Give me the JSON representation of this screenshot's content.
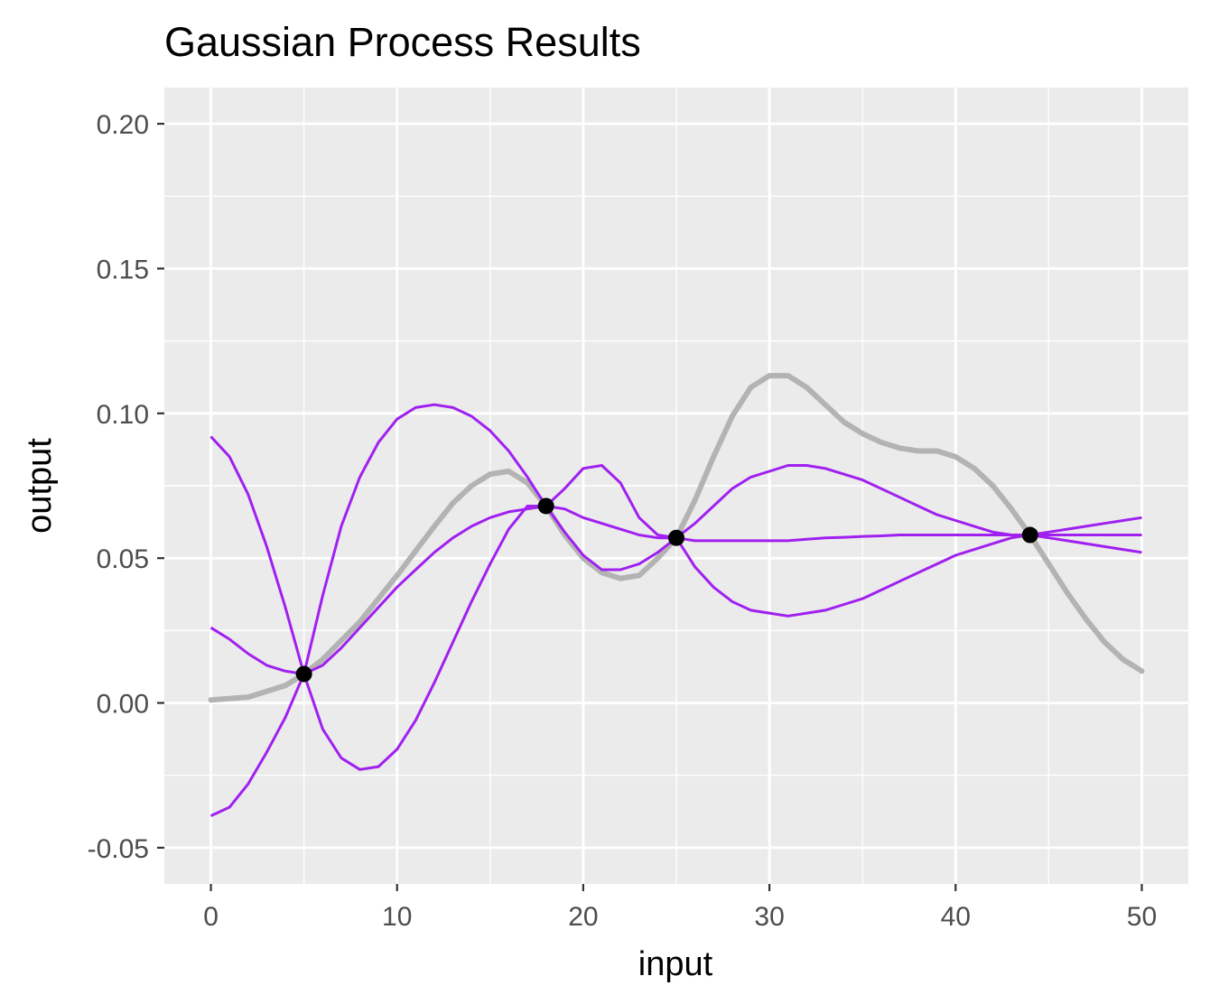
{
  "chart_data": {
    "type": "line",
    "title": "Gaussian Process Results",
    "xlabel": "input",
    "ylabel": "output",
    "xlim": [
      -2.5,
      52.5
    ],
    "ylim": [
      -0.0625,
      0.2125
    ],
    "x_ticks": [
      0,
      10,
      20,
      30,
      40,
      50
    ],
    "x_tick_labels": [
      "0",
      "10",
      "20",
      "30",
      "40",
      "50"
    ],
    "y_ticks": [
      -0.05,
      0,
      0.05,
      0.1,
      0.15,
      0.2
    ],
    "y_tick_labels": [
      "-0.05",
      "0.00",
      "0.05",
      "0.10",
      "0.15",
      "0.20"
    ],
    "grid": true,
    "legend": "none",
    "colors": {
      "panel": "#ebebeb",
      "grid": "#ffffff",
      "true_function": "#b3b3b3",
      "samples": "#a020f0",
      "observations": "#000000"
    },
    "true_function": {
      "x": [
        0,
        2,
        4,
        5,
        6,
        8,
        10,
        12,
        13,
        14,
        15,
        16,
        17,
        18,
        19,
        20,
        21,
        22,
        23,
        24,
        25,
        26,
        27,
        28,
        29,
        30,
        31,
        32,
        33,
        34,
        35,
        36,
        37,
        38,
        39,
        40,
        41,
        42,
        43,
        44,
        45,
        46,
        47,
        48,
        49,
        50
      ],
      "y": [
        0.001,
        0.002,
        0.006,
        0.01,
        0.015,
        0.028,
        0.044,
        0.061,
        0.069,
        0.075,
        0.079,
        0.08,
        0.076,
        0.068,
        0.058,
        0.05,
        0.045,
        0.043,
        0.044,
        0.05,
        0.057,
        0.07,
        0.085,
        0.099,
        0.109,
        0.113,
        0.113,
        0.109,
        0.103,
        0.097,
        0.093,
        0.09,
        0.088,
        0.087,
        0.087,
        0.085,
        0.081,
        0.075,
        0.067,
        0.058,
        0.048,
        0.038,
        0.029,
        0.021,
        0.015,
        0.011
      ]
    },
    "series": [
      {
        "x": [
          0,
          1,
          2,
          3,
          4,
          5,
          6,
          7,
          8,
          9,
          10,
          11,
          12,
          13,
          14,
          15,
          16,
          17,
          18,
          19,
          20,
          21,
          22,
          23,
          24,
          25,
          26,
          27,
          28,
          29,
          30,
          31,
          32,
          33,
          34,
          35,
          36,
          37,
          38,
          39,
          40,
          41,
          42,
          43,
          44,
          45,
          46,
          47,
          48,
          49,
          50
        ],
        "y": [
          0.092,
          0.085,
          0.072,
          0.054,
          0.033,
          0.01,
          -0.009,
          -0.019,
          -0.023,
          -0.022,
          -0.016,
          -0.006,
          0.007,
          0.021,
          0.035,
          0.048,
          0.06,
          0.068,
          0.068,
          0.067,
          0.064,
          0.062,
          0.06,
          0.058,
          0.057,
          0.057,
          0.056,
          0.056,
          0.056,
          0.056,
          0.056,
          0.056,
          0.0565,
          0.057,
          0.0572,
          0.0575,
          0.0577,
          0.058,
          0.058,
          0.058,
          0.058,
          0.058,
          0.058,
          0.058,
          0.058,
          0.058,
          0.058,
          0.058,
          0.058,
          0.058,
          0.058
        ]
      },
      {
        "x": [
          0,
          1,
          2,
          3,
          4,
          5,
          6,
          7,
          8,
          9,
          10,
          11,
          12,
          13,
          14,
          15,
          16,
          17,
          18,
          19,
          20,
          21,
          22,
          23,
          24,
          25,
          26,
          27,
          28,
          29,
          30,
          31,
          32,
          33,
          34,
          35,
          36,
          37,
          38,
          39,
          40,
          41,
          42,
          43,
          44,
          45,
          46,
          47,
          48,
          49,
          50
        ],
        "y": [
          0.026,
          0.022,
          0.017,
          0.013,
          0.011,
          0.01,
          0.013,
          0.019,
          0.026,
          0.033,
          0.04,
          0.046,
          0.052,
          0.057,
          0.061,
          0.064,
          0.066,
          0.067,
          0.068,
          0.074,
          0.081,
          0.082,
          0.076,
          0.064,
          0.058,
          0.057,
          0.062,
          0.068,
          0.074,
          0.078,
          0.08,
          0.082,
          0.082,
          0.081,
          0.079,
          0.077,
          0.074,
          0.071,
          0.068,
          0.065,
          0.063,
          0.061,
          0.059,
          0.058,
          0.058,
          0.057,
          0.056,
          0.055,
          0.054,
          0.053,
          0.052
        ]
      },
      {
        "x": [
          0,
          1,
          2,
          3,
          4,
          5,
          6,
          7,
          8,
          9,
          10,
          11,
          12,
          13,
          14,
          15,
          16,
          17,
          18,
          19,
          20,
          21,
          22,
          23,
          24,
          25,
          26,
          27,
          28,
          29,
          30,
          31,
          32,
          33,
          34,
          35,
          36,
          37,
          38,
          39,
          40,
          41,
          42,
          43,
          44,
          45,
          46,
          47,
          48,
          49,
          50
        ],
        "y": [
          -0.039,
          -0.036,
          -0.028,
          -0.017,
          -0.005,
          0.01,
          0.037,
          0.061,
          0.078,
          0.09,
          0.098,
          0.102,
          0.103,
          0.102,
          0.099,
          0.094,
          0.087,
          0.078,
          0.068,
          0.059,
          0.051,
          0.046,
          0.046,
          0.048,
          0.052,
          0.057,
          0.047,
          0.04,
          0.035,
          0.032,
          0.031,
          0.03,
          0.031,
          0.032,
          0.034,
          0.036,
          0.039,
          0.042,
          0.045,
          0.048,
          0.051,
          0.053,
          0.055,
          0.057,
          0.058,
          0.059,
          0.06,
          0.061,
          0.062,
          0.063,
          0.064
        ]
      }
    ],
    "observations": {
      "x": [
        5,
        18,
        25,
        44
      ],
      "y": [
        0.01,
        0.068,
        0.057,
        0.058
      ]
    }
  }
}
